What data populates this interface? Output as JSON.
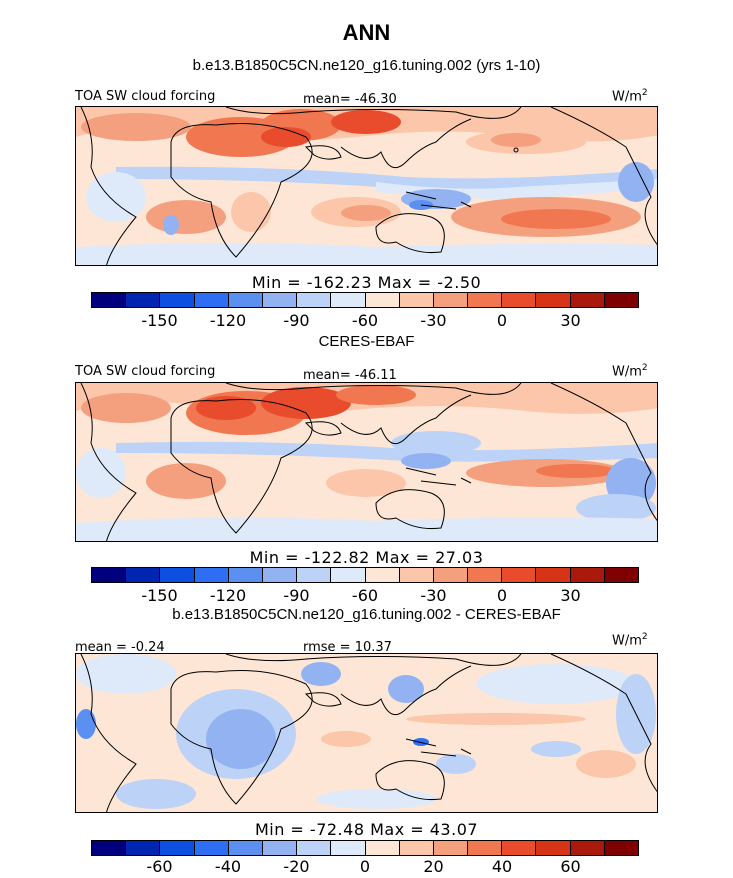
{
  "title": "ANN",
  "colors": [
    "#00007f",
    "#0025b0",
    "#0d4fe0",
    "#2e6ef2",
    "#5b8ff0",
    "#93b2f2",
    "#bcd2f7",
    "#deeaf9",
    "#fde6d6",
    "#fbc6a9",
    "#f4a07f",
    "#f0774f",
    "#e94c2d",
    "#d63317",
    "#aa1a0c",
    "#7f0000"
  ],
  "panels": [
    {
      "subtitle": "b.e13.B1850C5CN.ne120_g16.tuning.002 (yrs 1-10)",
      "left_label": "TOA SW cloud forcing",
      "center_label": "mean= -46.30",
      "right_label": "W/m",
      "right_sup": "2",
      "minmax": "Min = -162.23 Max =  -2.50",
      "ticks": [
        "-150",
        "-120",
        "-90",
        "-60",
        "-30",
        "0",
        "30"
      ]
    },
    {
      "subtitle": "CERES-EBAF",
      "left_label": "TOA SW cloud forcing",
      "center_label": "mean= -46.11",
      "right_label": "W/m",
      "right_sup": "2",
      "minmax": "Min = -122.82 Max =  27.03",
      "ticks": [
        "-150",
        "-120",
        "-90",
        "-60",
        "-30",
        "0",
        "30"
      ]
    },
    {
      "subtitle": "b.e13.B1850C5CN.ne120_g16.tuning.002 - CERES-EBAF",
      "left_label": "mean =  -0.24",
      "center_label": "rmse =  10.37",
      "right_label": "W/m",
      "right_sup": "2",
      "minmax": "Min = -72.48 Max =  43.07",
      "ticks": [
        "-60",
        "-40",
        "-20",
        "0",
        "20",
        "40",
        "60"
      ]
    }
  ],
  "chart_data": [
    {
      "type": "heatmap",
      "title": "b.e13.B1850C5CN.ne120_g16.tuning.002 (yrs 1-10)",
      "variable": "TOA SW cloud forcing",
      "units": "W/m2",
      "mean": -46.3,
      "min": -162.23,
      "max": -2.5,
      "colorbar_ticks": [
        -150,
        -120,
        -90,
        -60,
        -30,
        0,
        30
      ]
    },
    {
      "type": "heatmap",
      "title": "CERES-EBAF",
      "variable": "TOA SW cloud forcing",
      "units": "W/m2",
      "mean": -46.11,
      "min": -122.82,
      "max": 27.03,
      "colorbar_ticks": [
        -150,
        -120,
        -90,
        -60,
        -30,
        0,
        30
      ]
    },
    {
      "type": "heatmap",
      "title": "b.e13.B1850C5CN.ne120_g16.tuning.002 - CERES-EBAF",
      "units": "W/m2",
      "mean": -0.24,
      "rmse": 10.37,
      "min": -72.48,
      "max": 43.07,
      "colorbar_ticks": [
        -60,
        -40,
        -20,
        0,
        20,
        40,
        60
      ]
    }
  ]
}
